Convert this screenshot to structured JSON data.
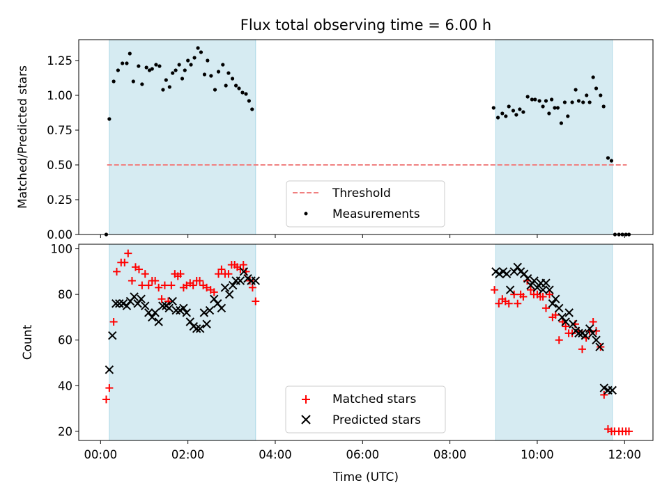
{
  "figure": {
    "title": "Flux total observing time = 6.00 h"
  },
  "chart_data": [
    {
      "type": "scatter",
      "panel": "top",
      "title": "Flux total observing time = 6.00 h",
      "xlabel": "",
      "ylabel": "Matched/Predicted stars",
      "x_unit": "hours UTC",
      "xlim": [
        -0.5,
        12.65
      ],
      "ylim": [
        0,
        1.4
      ],
      "yticks": [
        0.0,
        0.25,
        0.5,
        0.75,
        1.0,
        1.25
      ],
      "ytick_labels": [
        "0.00",
        "0.25",
        "0.50",
        "0.75",
        "1.00",
        "1.25"
      ],
      "shaded_intervals": [
        [
          0.2,
          3.55
        ],
        [
          9.05,
          11.72
        ]
      ],
      "threshold": {
        "name": "Threshold",
        "value": 0.5,
        "x_range": [
          0.15,
          12.05
        ],
        "color": "#f08080",
        "style": "dashed"
      },
      "legend": {
        "placement": "lower-center",
        "entries": [
          "Threshold",
          "Measurements"
        ]
      },
      "series": [
        {
          "name": "Measurements",
          "marker": "dot",
          "color": "#000000",
          "points": [
            [
              0.13,
              0.0
            ],
            [
              0.2,
              0.83
            ],
            [
              0.3,
              1.1
            ],
            [
              0.4,
              1.18
            ],
            [
              0.5,
              1.23
            ],
            [
              0.6,
              1.23
            ],
            [
              0.67,
              1.3
            ],
            [
              0.75,
              1.1
            ],
            [
              0.87,
              1.21
            ],
            [
              0.95,
              1.08
            ],
            [
              1.05,
              1.2
            ],
            [
              1.12,
              1.18
            ],
            [
              1.18,
              1.19
            ],
            [
              1.27,
              1.22
            ],
            [
              1.35,
              1.21
            ],
            [
              1.43,
              1.04
            ],
            [
              1.5,
              1.11
            ],
            [
              1.58,
              1.06
            ],
            [
              1.65,
              1.16
            ],
            [
              1.72,
              1.18
            ],
            [
              1.8,
              1.22
            ],
            [
              1.87,
              1.12
            ],
            [
              1.93,
              1.18
            ],
            [
              2.0,
              1.25
            ],
            [
              2.07,
              1.22
            ],
            [
              2.15,
              1.27
            ],
            [
              2.23,
              1.34
            ],
            [
              2.3,
              1.31
            ],
            [
              2.38,
              1.15
            ],
            [
              2.45,
              1.25
            ],
            [
              2.53,
              1.14
            ],
            [
              2.62,
              1.04
            ],
            [
              2.7,
              1.17
            ],
            [
              2.8,
              1.22
            ],
            [
              2.87,
              1.07
            ],
            [
              2.93,
              1.16
            ],
            [
              3.02,
              1.12
            ],
            [
              3.1,
              1.07
            ],
            [
              3.17,
              1.05
            ],
            [
              3.25,
              1.02
            ],
            [
              3.33,
              1.01
            ],
            [
              3.4,
              0.96
            ],
            [
              3.47,
              0.9
            ],
            [
              9.0,
              0.91
            ],
            [
              9.1,
              0.84
            ],
            [
              9.2,
              0.87
            ],
            [
              9.28,
              0.85
            ],
            [
              9.35,
              0.92
            ],
            [
              9.45,
              0.89
            ],
            [
              9.52,
              0.86
            ],
            [
              9.6,
              0.9
            ],
            [
              9.68,
              0.88
            ],
            [
              9.78,
              0.99
            ],
            [
              9.88,
              0.97
            ],
            [
              9.95,
              0.97
            ],
            [
              10.05,
              0.96
            ],
            [
              10.13,
              0.92
            ],
            [
              10.2,
              0.96
            ],
            [
              10.27,
              0.87
            ],
            [
              10.33,
              0.97
            ],
            [
              10.4,
              0.91
            ],
            [
              10.47,
              0.91
            ],
            [
              10.55,
              0.8
            ],
            [
              10.63,
              0.95
            ],
            [
              10.7,
              0.85
            ],
            [
              10.8,
              0.95
            ],
            [
              10.88,
              1.04
            ],
            [
              10.95,
              0.96
            ],
            [
              11.05,
              0.95
            ],
            [
              11.13,
              1.0
            ],
            [
              11.2,
              0.95
            ],
            [
              11.28,
              1.13
            ],
            [
              11.35,
              1.05
            ],
            [
              11.45,
              1.0
            ],
            [
              11.52,
              0.92
            ],
            [
              11.62,
              0.55
            ],
            [
              11.7,
              0.53
            ],
            [
              11.78,
              0.0
            ],
            [
              11.87,
              0.0
            ],
            [
              11.95,
              0.0
            ],
            [
              12.03,
              0.0
            ],
            [
              12.1,
              0.0
            ]
          ]
        }
      ]
    },
    {
      "type": "scatter",
      "panel": "bottom",
      "title": "",
      "xlabel": "Time (UTC)",
      "ylabel": "Count",
      "x_unit": "hours UTC",
      "xlim": [
        -0.5,
        12.65
      ],
      "ylim": [
        16,
        102
      ],
      "xticks": [
        0,
        2,
        4,
        6,
        8,
        10,
        12
      ],
      "xtick_labels": [
        "00:00",
        "02:00",
        "04:00",
        "06:00",
        "08:00",
        "10:00",
        "12:00"
      ],
      "yticks": [
        20,
        40,
        60,
        80,
        100
      ],
      "ytick_labels": [
        "20",
        "40",
        "60",
        "80",
        "100"
      ],
      "shaded_intervals": [
        [
          0.2,
          3.55
        ],
        [
          9.05,
          11.72
        ]
      ],
      "legend": {
        "placement": "lower-center",
        "entries": [
          "Matched stars",
          "Predicted stars"
        ]
      },
      "series": [
        {
          "name": "Matched stars",
          "marker": "plus",
          "color": "#ff0000",
          "points": [
            [
              0.13,
              34
            ],
            [
              0.2,
              39
            ],
            [
              0.3,
              68
            ],
            [
              0.37,
              90
            ],
            [
              0.47,
              94
            ],
            [
              0.55,
              94
            ],
            [
              0.63,
              98
            ],
            [
              0.72,
              86
            ],
            [
              0.8,
              92
            ],
            [
              0.88,
              91
            ],
            [
              0.95,
              84
            ],
            [
              1.02,
              89
            ],
            [
              1.1,
              84
            ],
            [
              1.18,
              86
            ],
            [
              1.25,
              86
            ],
            [
              1.33,
              83
            ],
            [
              1.4,
              78
            ],
            [
              1.47,
              84
            ],
            [
              1.55,
              77
            ],
            [
              1.62,
              84
            ],
            [
              1.7,
              89
            ],
            [
              1.77,
              88
            ],
            [
              1.83,
              89
            ],
            [
              1.9,
              83
            ],
            [
              1.97,
              84
            ],
            [
              2.05,
              85
            ],
            [
              2.12,
              84
            ],
            [
              2.2,
              86
            ],
            [
              2.27,
              86
            ],
            [
              2.35,
              84
            ],
            [
              2.43,
              83
            ],
            [
              2.52,
              82
            ],
            [
              2.6,
              81
            ],
            [
              2.7,
              89
            ],
            [
              2.77,
              91
            ],
            [
              2.85,
              89
            ],
            [
              2.93,
              89
            ],
            [
              3.0,
              93
            ],
            [
              3.07,
              93
            ],
            [
              3.13,
              92
            ],
            [
              3.2,
              91
            ],
            [
              3.27,
              93
            ],
            [
              3.33,
              90
            ],
            [
              3.42,
              86
            ],
            [
              3.48,
              83
            ],
            [
              3.55,
              77
            ],
            [
              9.02,
              82
            ],
            [
              9.12,
              76
            ],
            [
              9.2,
              78
            ],
            [
              9.27,
              77
            ],
            [
              9.35,
              76
            ],
            [
              9.47,
              80
            ],
            [
              9.55,
              76
            ],
            [
              9.62,
              80
            ],
            [
              9.68,
              79
            ],
            [
              9.77,
              86
            ],
            [
              9.85,
              82
            ],
            [
              9.92,
              80
            ],
            [
              10.0,
              80
            ],
            [
              10.07,
              79
            ],
            [
              10.13,
              79
            ],
            [
              10.2,
              74
            ],
            [
              10.28,
              80
            ],
            [
              10.35,
              70
            ],
            [
              10.42,
              71
            ],
            [
              10.5,
              60
            ],
            [
              10.58,
              68
            ],
            [
              10.65,
              66
            ],
            [
              10.72,
              63
            ],
            [
              10.8,
              63
            ],
            [
              10.87,
              67
            ],
            [
              10.95,
              64
            ],
            [
              11.03,
              56
            ],
            [
              11.12,
              61
            ],
            [
              11.2,
              64
            ],
            [
              11.28,
              68
            ],
            [
              11.35,
              64
            ],
            [
              11.45,
              57
            ],
            [
              11.53,
              36
            ],
            [
              11.62,
              21
            ],
            [
              11.7,
              20
            ],
            [
              11.77,
              20
            ],
            [
              11.87,
              20
            ],
            [
              11.95,
              20
            ],
            [
              12.03,
              20
            ],
            [
              12.1,
              20
            ]
          ]
        },
        {
          "name": "Predicted stars",
          "marker": "x",
          "color": "#000000",
          "points": [
            [
              0.2,
              47
            ],
            [
              0.27,
              62
            ],
            [
              0.35,
              76
            ],
            [
              0.43,
              76
            ],
            [
              0.52,
              76
            ],
            [
              0.6,
              75
            ],
            [
              0.68,
              77
            ],
            [
              0.77,
              79
            ],
            [
              0.85,
              76
            ],
            [
              0.93,
              78
            ],
            [
              1.02,
              75
            ],
            [
              1.1,
              72
            ],
            [
              1.18,
              70
            ],
            [
              1.25,
              72
            ],
            [
              1.33,
              68
            ],
            [
              1.42,
              75
            ],
            [
              1.5,
              75
            ],
            [
              1.57,
              74
            ],
            [
              1.65,
              77
            ],
            [
              1.73,
              73
            ],
            [
              1.82,
              73
            ],
            [
              1.9,
              74
            ],
            [
              1.97,
              72
            ],
            [
              2.05,
              68
            ],
            [
              2.13,
              66
            ],
            [
              2.2,
              65
            ],
            [
              2.28,
              65
            ],
            [
              2.37,
              72
            ],
            [
              2.43,
              67
            ],
            [
              2.5,
              73
            ],
            [
              2.6,
              78
            ],
            [
              2.68,
              76
            ],
            [
              2.77,
              74
            ],
            [
              2.85,
              83
            ],
            [
              2.95,
              80
            ],
            [
              3.03,
              84
            ],
            [
              3.1,
              86
            ],
            [
              3.2,
              86
            ],
            [
              3.28,
              90
            ],
            [
              3.37,
              87
            ],
            [
              3.45,
              86
            ],
            [
              3.55,
              86
            ],
            [
              9.05,
              90
            ],
            [
              9.13,
              89
            ],
            [
              9.22,
              90
            ],
            [
              9.3,
              89
            ],
            [
              9.38,
              82
            ],
            [
              9.47,
              90
            ],
            [
              9.55,
              92
            ],
            [
              9.62,
              90
            ],
            [
              9.7,
              89
            ],
            [
              9.78,
              87
            ],
            [
              9.85,
              84
            ],
            [
              9.93,
              86
            ],
            [
              10.0,
              83
            ],
            [
              10.08,
              85
            ],
            [
              10.13,
              82
            ],
            [
              10.2,
              85
            ],
            [
              10.28,
              82
            ],
            [
              10.35,
              76
            ],
            [
              10.42,
              78
            ],
            [
              10.5,
              74
            ],
            [
              10.57,
              70
            ],
            [
              10.65,
              68
            ],
            [
              10.73,
              72
            ],
            [
              10.82,
              67
            ],
            [
              10.88,
              64
            ],
            [
              10.95,
              63
            ],
            [
              11.03,
              63
            ],
            [
              11.1,
              62
            ],
            [
              11.2,
              65
            ],
            [
              11.27,
              63
            ],
            [
              11.35,
              60
            ],
            [
              11.43,
              57
            ],
            [
              11.53,
              39
            ],
            [
              11.62,
              38
            ],
            [
              11.72,
              38
            ]
          ]
        }
      ]
    }
  ]
}
